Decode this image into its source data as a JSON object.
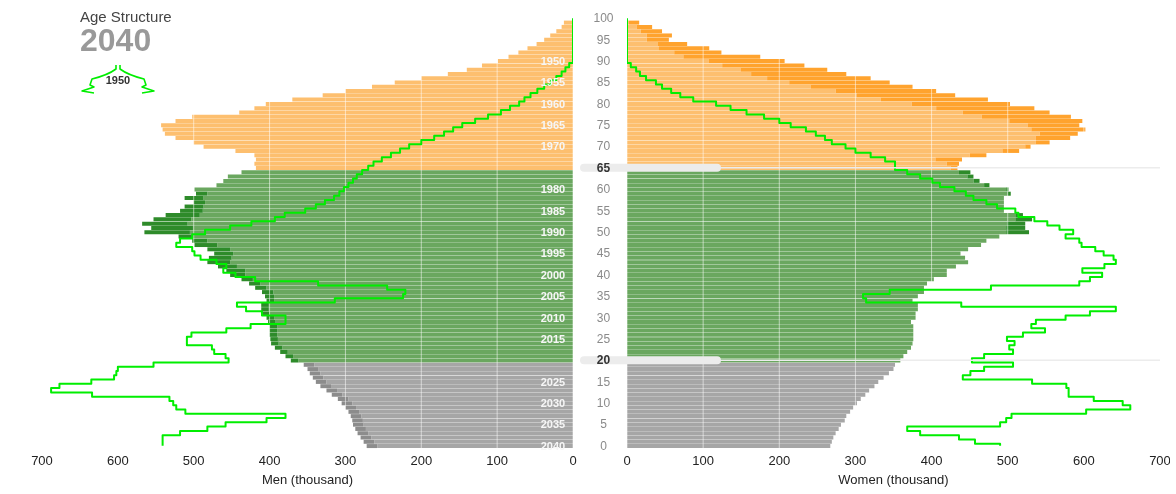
{
  "chart_data": [
    {
      "type": "bar",
      "orientation": "horizontal",
      "stacked": true,
      "title": "Age Structure",
      "subtitle": "2040",
      "xlabel": "Men (thousand)",
      "legend": "top left",
      "grid": "x",
      "categories": [
        null,
        null,
        null,
        null,
        null,
        null,
        null,
        null,
        null,
        null,
        "1950",
        null,
        null,
        null,
        null,
        "1955",
        null,
        null,
        null,
        null,
        "1960",
        null,
        null,
        null,
        null,
        "1965",
        null,
        null,
        null,
        null,
        "1970",
        null,
        null,
        null,
        null,
        null,
        null,
        null,
        null,
        null,
        "1980",
        null,
        null,
        null,
        null,
        "1985",
        null,
        null,
        null,
        null,
        "1990",
        null,
        null,
        null,
        null,
        "1995",
        null,
        null,
        null,
        null,
        "2000",
        null,
        null,
        null,
        null,
        "2005",
        null,
        null,
        null,
        null,
        "2010",
        null,
        null,
        null,
        null,
        "2015",
        null,
        null,
        null,
        null,
        null,
        null,
        null,
        null,
        null,
        "2025",
        null,
        null,
        null,
        null,
        "2030",
        null,
        null,
        null,
        null,
        "2035",
        null,
        null,
        null,
        null,
        "2040"
      ],
      "xlim": [
        700,
        0
      ],
      "xticks": [
        700,
        600,
        500,
        400,
        300,
        200,
        100,
        0
      ],
      "series": [
        {
          "type": "bar",
          "values": [
            null,
            12,
            15,
            22,
            30,
            38,
            48,
            60,
            72,
            85,
            99,
            120,
            140,
            165,
            200,
            235,
            265,
            300,
            330,
            370,
            405,
            420,
            440,
            502,
            524,
            543,
            541,
            538,
            524,
            500,
            487,
            445,
            420,
            418,
            420,
            418,
            437,
            455,
            461,
            470,
            499,
            482,
            487,
            485,
            487,
            488,
            492,
            503,
            508,
            501,
            505,
            500,
            482,
            469,
            452,
            448,
            450,
            452,
            443,
            432,
            432,
            422,
            412,
            404,
            395,
            394,
            394,
            401,
            401,
            400,
            394,
            392,
            390,
            390,
            390,
            389,
            388,
            383,
            376,
            369,
            362,
            341,
            336,
            333,
            329,
            325,
            319,
            311,
            304,
            296,
            291,
            286,
            282,
            279,
            277,
            276,
            273,
            270,
            266,
            262,
            258
          ],
          "colors": [
            "#fdbf6f",
            "#fdbf6f",
            "#fdbf6f",
            "#fdbf6f",
            "#fdbf6f",
            "#fdbf6f",
            "#fdbf6f",
            "#fdbf6f",
            "#fdbf6f",
            "#fdbf6f",
            "#fdbf6f",
            "#fdbf6f",
            "#fdbf6f",
            "#fdbf6f",
            "#fdbf6f",
            "#fdbf6f",
            "#fdbf6f",
            "#fdbf6f",
            "#fdbf6f",
            "#fdbf6f",
            "#fdbf6f",
            "#fdbf6f",
            "#fdbf6f",
            "#fdbf6f",
            "#fdbf6f",
            "#fdbf6f",
            "#fdbf6f",
            "#fdbf6f",
            "#fdbf6f",
            "#fdbf6f",
            "#fdbf6f",
            "#fdbf6f",
            "#fdbf6f",
            "#fdbf6f",
            "#fdbf6f",
            "#fdbf6f",
            "#6aa75f",
            "#6aa75f",
            "#6aa75f",
            "#6aa75f",
            "#6aa75f",
            "#6aa75f",
            "#6aa75f",
            "#6aa75f",
            "#6aa75f",
            "#6aa75f",
            "#6aa75f",
            "#6aa75f",
            "#6aa75f",
            "#6aa75f",
            "#6aa75f",
            "#6aa75f",
            "#6aa75f",
            "#6aa75f",
            "#6aa75f",
            "#6aa75f",
            "#6aa75f",
            "#6aa75f",
            "#6aa75f",
            "#6aa75f",
            "#6aa75f",
            "#6aa75f",
            "#6aa75f",
            "#6aa75f",
            "#6aa75f",
            "#6aa75f",
            "#6aa75f",
            "#6aa75f",
            "#6aa75f",
            "#6aa75f",
            "#6aa75f",
            "#6aa75f",
            "#6aa75f",
            "#6aa75f",
            "#6aa75f",
            "#6aa75f",
            "#6aa75f",
            "#6aa75f",
            "#6aa75f",
            "#6aa75f",
            "#6aa75f",
            "#a6a6a6",
            "#a6a6a6",
            "#a6a6a6",
            "#a6a6a6",
            "#a6a6a6",
            "#a6a6a6",
            "#a6a6a6",
            "#a6a6a6",
            "#a6a6a6",
            "#a6a6a6",
            "#a6a6a6",
            "#a6a6a6",
            "#a6a6a6",
            "#a6a6a6",
            "#a6a6a6",
            "#a6a6a6",
            "#a6a6a6",
            "#a6a6a6",
            "#a6a6a6",
            "#a6a6a6"
          ]
        },
        {
          "type": "bar",
          "values": [
            null,
            null,
            null,
            null,
            null,
            null,
            null,
            null,
            null,
            null,
            null,
            null,
            null,
            null,
            null,
            null,
            null,
            null,
            null,
            null,
            null,
            null,
            null,
            null,
            null,
            null,
            null,
            null,
            null,
            null,
            null,
            null,
            null,
            null,
            null,
            null,
            null,
            null,
            null,
            null,
            null,
            15,
            25,
            15,
            25,
            30,
            45,
            50,
            60,
            55,
            60,
            20,
            20,
            30,
            30,
            25,
            30,
            30,
            25,
            25,
            20,
            15,
            15,
            15,
            15,
            12,
            10,
            10,
            10,
            10,
            10,
            10,
            10,
            10,
            10,
            10,
            10,
            10,
            10,
            10,
            10,
            14,
            14,
            14,
            14,
            14,
            14,
            14,
            14,
            14,
            14,
            14,
            14,
            14,
            14,
            14,
            14,
            14,
            14,
            14,
            14
          ],
          "colors": [
            "#ffa32e",
            "#ffa32e",
            "#ffa32e",
            "#ffa32e",
            "#ffa32e",
            "#ffa32e",
            "#ffa32e",
            "#ffa32e",
            "#ffa32e",
            "#ffa32e",
            "#ffa32e",
            "#ffa32e",
            "#ffa32e",
            "#ffa32e",
            "#ffa32e",
            "#ffa32e",
            "#ffa32e",
            "#ffa32e",
            "#ffa32e",
            "#ffa32e",
            "#ffa32e",
            "#ffa32e",
            "#ffa32e",
            "#ffa32e",
            "#ffa32e",
            "#ffa32e",
            "#ffa32e",
            "#ffa32e",
            "#ffa32e",
            "#ffa32e",
            "#ffa32e",
            "#ffa32e",
            "#ffa32e",
            "#ffa32e",
            "#ffa32e",
            "#ffa32e",
            "#2e8b2a",
            "#2e8b2a",
            "#2e8b2a",
            "#2e8b2a",
            "#2e8b2a",
            "#2e8b2a",
            "#2e8b2a",
            "#2e8b2a",
            "#2e8b2a",
            "#2e8b2a",
            "#2e8b2a",
            "#2e8b2a",
            "#2e8b2a",
            "#2e8b2a",
            "#2e8b2a",
            "#2e8b2a",
            "#2e8b2a",
            "#2e8b2a",
            "#2e8b2a",
            "#2e8b2a",
            "#2e8b2a",
            "#2e8b2a",
            "#2e8b2a",
            "#2e8b2a",
            "#2e8b2a",
            "#2e8b2a",
            "#2e8b2a",
            "#2e8b2a",
            "#2e8b2a",
            "#2e8b2a",
            "#2e8b2a",
            "#2e8b2a",
            "#2e8b2a",
            "#2e8b2a",
            "#2e8b2a",
            "#2e8b2a",
            "#2e8b2a",
            "#2e8b2a",
            "#2e8b2a",
            "#2e8b2a",
            "#2e8b2a",
            "#2e8b2a",
            "#2e8b2a",
            "#2e8b2a",
            "#2e8b2a",
            "#8c8c8c",
            "#8c8c8c",
            "#8c8c8c",
            "#8c8c8c",
            "#8c8c8c",
            "#8c8c8c",
            "#8c8c8c",
            "#8c8c8c",
            "#8c8c8c",
            "#8c8c8c",
            "#8c8c8c",
            "#8c8c8c",
            "#8c8c8c",
            "#8c8c8c",
            "#8c8c8c",
            "#8c8c8c",
            "#8c8c8c",
            "#8c8c8c",
            "#8c8c8c",
            "#8c8c8c"
          ]
        },
        {
          "type": "step",
          "name": "1950",
          "color": "#00ee00",
          "values": [
            0,
            0,
            0,
            0,
            0,
            0,
            0,
            0,
            0,
            0,
            0,
            5,
            10,
            15,
            22,
            29,
            38,
            47,
            56,
            64,
            71,
            83,
            95,
            112,
            129,
            146,
            158,
            170,
            183,
            200,
            216,
            228,
            240,
            252,
            263,
            270,
            278,
            285,
            290,
            296,
            302,
            308,
            315,
            327,
            339,
            353,
            380,
            393,
            424,
            452,
            485,
            502,
            518,
            523,
            502,
            499,
            491,
            470,
            457,
            461,
            445,
            419,
            336,
            245,
            221,
            224,
            314,
            443,
            431,
            410,
            379,
            379,
            425,
            457,
            503,
            509,
            509,
            476,
            473,
            458,
            454,
            553,
            600,
            602,
            605,
            635,
            677,
            688,
            634,
            532,
            527,
            523,
            511,
            379,
            404,
            458,
            482,
            518,
            541,
            541,
            541
          ]
        }
      ]
    },
    {
      "type": "bar",
      "orientation": "horizontal",
      "stacked": true,
      "xlabel": "Women (thousand)",
      "grid": "x",
      "categories": [
        "100",
        null,
        null,
        null,
        null,
        "95",
        null,
        null,
        null,
        null,
        "90",
        null,
        null,
        null,
        null,
        "85",
        null,
        null,
        null,
        null,
        "80",
        null,
        null,
        null,
        null,
        "75",
        null,
        null,
        null,
        null,
        "70",
        null,
        null,
        null,
        null,
        "65",
        null,
        null,
        null,
        null,
        "60",
        null,
        null,
        null,
        null,
        "55",
        null,
        null,
        null,
        null,
        "50",
        null,
        null,
        null,
        null,
        "45",
        null,
        null,
        null,
        null,
        "40",
        null,
        null,
        null,
        null,
        "35",
        null,
        null,
        null,
        null,
        "30",
        null,
        null,
        null,
        null,
        "25",
        null,
        null,
        null,
        null,
        "20",
        null,
        null,
        null,
        null,
        "15",
        null,
        null,
        null,
        null,
        "10",
        null,
        null,
        null,
        null,
        "5",
        null,
        null,
        null,
        null,
        "0"
      ],
      "xlim": [
        0,
        700
      ],
      "xticks": [
        0,
        100,
        200,
        300,
        400,
        500,
        600,
        700
      ],
      "ref_lines": [
        {
          "axis": "y",
          "value": "65"
        },
        {
          "axis": "y",
          "value": "20"
        }
      ],
      "series": [
        {
          "type": "bar",
          "values": [
            null,
            2,
            13,
            18,
            26,
            26,
            40,
            42,
            62,
            74,
            107,
            125,
            149,
            163,
            184,
            213,
            241,
            274,
            302,
            333,
            374,
            406,
            441,
            466,
            502,
            526,
            531,
            542,
            537,
            537,
            523,
            493,
            450,
            405,
            420,
            425,
            436,
            447,
            455,
            469,
            498,
            500,
            495,
            495,
            495,
            495,
            510,
            510,
            499,
            498,
            498,
            489,
            472,
            465,
            448,
            438,
            444,
            448,
            432,
            420,
            420,
            403,
            394,
            390,
            390,
            382,
            375,
            382,
            382,
            379,
            379,
            373,
            376,
            376,
            376,
            376,
            375,
            373,
            368,
            363,
            359,
            352,
            350,
            344,
            337,
            330,
            325,
            318,
            313,
            307,
            302,
            297,
            293,
            288,
            286,
            281,
            278,
            274,
            271,
            269,
            267
          ],
          "colors": [
            "#fdbf6f",
            "#fdbf6f",
            "#fdbf6f",
            "#fdbf6f",
            "#fdbf6f",
            "#fdbf6f",
            "#fdbf6f",
            "#fdbf6f",
            "#fdbf6f",
            "#fdbf6f",
            "#fdbf6f",
            "#fdbf6f",
            "#fdbf6f",
            "#fdbf6f",
            "#fdbf6f",
            "#fdbf6f",
            "#fdbf6f",
            "#fdbf6f",
            "#fdbf6f",
            "#fdbf6f",
            "#fdbf6f",
            "#fdbf6f",
            "#fdbf6f",
            "#fdbf6f",
            "#fdbf6f",
            "#fdbf6f",
            "#fdbf6f",
            "#fdbf6f",
            "#fdbf6f",
            "#fdbf6f",
            "#fdbf6f",
            "#fdbf6f",
            "#fdbf6f",
            "#fdbf6f",
            "#fdbf6f",
            "#fdbf6f",
            "#6aa75f",
            "#6aa75f",
            "#6aa75f",
            "#6aa75f",
            "#6aa75f",
            "#6aa75f",
            "#6aa75f",
            "#6aa75f",
            "#6aa75f",
            "#6aa75f",
            "#6aa75f",
            "#6aa75f",
            "#6aa75f",
            "#6aa75f",
            "#6aa75f",
            "#6aa75f",
            "#6aa75f",
            "#6aa75f",
            "#6aa75f",
            "#6aa75f",
            "#6aa75f",
            "#6aa75f",
            "#6aa75f",
            "#6aa75f",
            "#6aa75f",
            "#6aa75f",
            "#6aa75f",
            "#6aa75f",
            "#6aa75f",
            "#6aa75f",
            "#6aa75f",
            "#6aa75f",
            "#6aa75f",
            "#6aa75f",
            "#6aa75f",
            "#6aa75f",
            "#6aa75f",
            "#6aa75f",
            "#6aa75f",
            "#6aa75f",
            "#6aa75f",
            "#6aa75f",
            "#6aa75f",
            "#6aa75f",
            "#6aa75f",
            "#a6a6a6",
            "#a6a6a6",
            "#a6a6a6",
            "#a6a6a6",
            "#a6a6a6",
            "#a6a6a6",
            "#a6a6a6",
            "#a6a6a6",
            "#a6a6a6",
            "#a6a6a6",
            "#a6a6a6",
            "#a6a6a6",
            "#a6a6a6",
            "#a6a6a6",
            "#a6a6a6",
            "#a6a6a6",
            "#a6a6a6",
            "#a6a6a6",
            "#a6a6a6",
            "#a6a6a6"
          ]
        },
        {
          "type": "bar",
          "values": [
            null,
            14,
            20,
            28,
            33,
            29,
            39,
            66,
            62,
            101,
            100,
            108,
            114,
            125,
            136,
            132,
            134,
            132,
            129,
            141,
            129,
            129,
            114,
            117,
            96,
            68,
            71,
            50,
            45,
            18,
            7,
            22,
            22,
            35,
            16,
            9,
            15,
            8,
            8,
            7,
            3,
            4,
            null,
            null,
            null,
            null,
            10,
            22,
            24,
            25,
            30,
            null,
            null,
            null,
            null,
            null,
            null,
            null,
            null,
            null,
            null,
            null,
            null,
            null,
            null,
            null,
            null,
            null,
            null,
            null,
            null,
            null,
            null,
            null,
            null,
            null,
            null,
            null,
            null,
            null,
            null,
            null,
            null,
            null,
            null,
            null,
            null,
            null,
            null,
            null,
            null,
            null,
            null,
            null,
            null,
            null,
            null,
            null,
            null,
            null,
            null
          ],
          "colors": [
            "#ffa32e",
            "#ffa32e",
            "#ffa32e",
            "#ffa32e",
            "#ffa32e",
            "#ffa32e",
            "#ffa32e",
            "#ffa32e",
            "#ffa32e",
            "#ffa32e",
            "#ffa32e",
            "#ffa32e",
            "#ffa32e",
            "#ffa32e",
            "#ffa32e",
            "#ffa32e",
            "#ffa32e",
            "#ffa32e",
            "#ffa32e",
            "#ffa32e",
            "#ffa32e",
            "#ffa32e",
            "#ffa32e",
            "#ffa32e",
            "#ffa32e",
            "#ffa32e",
            "#ffa32e",
            "#ffa32e",
            "#ffa32e",
            "#ffa32e",
            "#ffa32e",
            "#ffa32e",
            "#ffa32e",
            "#ffa32e",
            "#ffa32e",
            "#ffa32e",
            "#2e8b2a",
            "#2e8b2a",
            "#2e8b2a",
            "#2e8b2a",
            "#2e8b2a",
            "#2e8b2a",
            "#2e8b2a",
            "#2e8b2a",
            "#2e8b2a",
            "#2e8b2a",
            "#2e8b2a",
            "#2e8b2a",
            "#2e8b2a",
            "#2e8b2a",
            "#2e8b2a",
            "#2e8b2a",
            "#2e8b2a",
            "#2e8b2a",
            "#2e8b2a",
            "#2e8b2a",
            "#2e8b2a",
            "#2e8b2a",
            "#2e8b2a",
            "#2e8b2a",
            "#2e8b2a",
            "#2e8b2a",
            "#2e8b2a",
            "#2e8b2a",
            "#2e8b2a",
            "#2e8b2a",
            "#2e8b2a",
            "#2e8b2a",
            "#2e8b2a",
            "#2e8b2a",
            "#2e8b2a",
            "#2e8b2a",
            "#2e8b2a",
            "#2e8b2a",
            "#2e8b2a",
            "#2e8b2a",
            "#2e8b2a",
            "#2e8b2a",
            "#2e8b2a",
            "#2e8b2a",
            "#2e8b2a",
            "#8c8c8c",
            "#8c8c8c",
            "#8c8c8c",
            "#8c8c8c",
            "#8c8c8c",
            "#8c8c8c",
            "#8c8c8c",
            "#8c8c8c",
            "#8c8c8c",
            "#8c8c8c",
            "#8c8c8c",
            "#8c8c8c",
            "#8c8c8c",
            "#8c8c8c",
            "#8c8c8c",
            "#8c8c8c",
            "#8c8c8c",
            "#8c8c8c",
            "#8c8c8c",
            "#8c8c8c"
          ]
        },
        {
          "type": "step",
          "color": "#00ee00",
          "values": [
            0,
            0,
            0,
            0,
            0,
            0,
            0,
            0,
            0,
            0,
            0,
            5,
            12,
            17,
            25,
            38,
            46,
            58,
            70,
            87,
            117,
            136,
            157,
            180,
            200,
            215,
            235,
            248,
            260,
            269,
            287,
            300,
            320,
            339,
            352,
            352,
            368,
            385,
            401,
            411,
            430,
            445,
            455,
            472,
            486,
            510,
            514,
            535,
            552,
            568,
            586,
            576,
            594,
            597,
            615,
            626,
            639,
            642,
            627,
            598,
            624,
            608,
            594,
            478,
            345,
            310,
            314,
            439,
            642,
            608,
            576,
            537,
            531,
            549,
            520,
            499,
            509,
            502,
            507,
            469,
            453,
            507,
            469,
            451,
            441,
            532,
            577,
            580,
            580,
            613,
            651,
            661,
            603,
            505,
            498,
            490,
            368,
            385,
            436,
            457,
            490
          ]
        }
      ]
    }
  ]
}
